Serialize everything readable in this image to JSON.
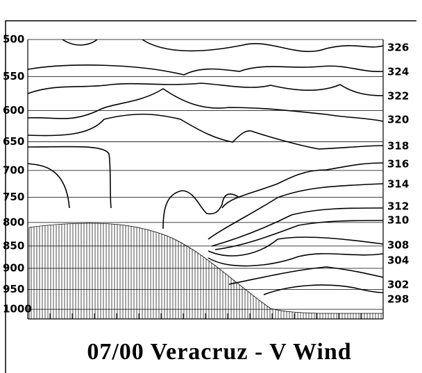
{
  "chart_data": {
    "type": "cross-section",
    "title": "07/00 Veracruz - V Wind",
    "ylim": [
      500,
      1025
    ],
    "log_y": true,
    "yticks": [
      500,
      550,
      600,
      650,
      700,
      750,
      800,
      850,
      900,
      950,
      1000
    ],
    "grid": true,
    "contours": [
      326,
      324,
      322,
      320,
      318,
      316,
      314,
      312,
      310,
      308,
      304,
      302,
      298
    ]
  }
}
